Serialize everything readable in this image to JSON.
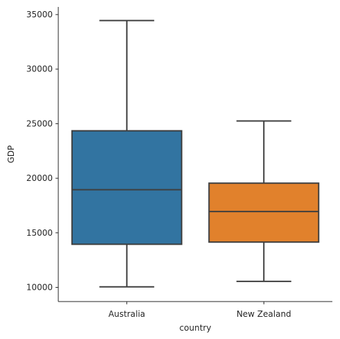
{
  "chart_data": {
    "type": "box",
    "xlabel": "country",
    "ylabel": "GDP",
    "ylim": [
      8700,
      35700
    ],
    "yticks": [
      10000,
      15000,
      20000,
      25000,
      30000,
      35000
    ],
    "categories": [
      "Australia",
      "New Zealand"
    ],
    "boxes": [
      {
        "category": "Australia",
        "whisker_low": 10050,
        "q1": 13950,
        "median": 18950,
        "q3": 24350,
        "whisker_high": 34450,
        "color": "#3274a1"
      },
      {
        "category": "New Zealand",
        "whisker_low": 10550,
        "q1": 14150,
        "median": 16950,
        "q3": 19550,
        "whisker_high": 25250,
        "color": "#e1812c"
      }
    ],
    "grid": false,
    "legend": "none"
  }
}
